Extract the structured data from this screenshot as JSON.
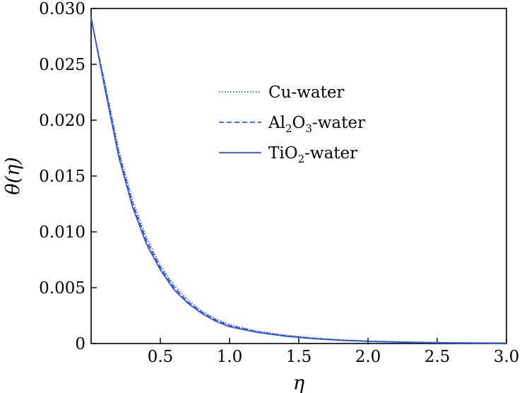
{
  "chart_data": {
    "type": "line",
    "title": "",
    "xlabel": "η",
    "ylabel": "θ(η)",
    "xlim": [
      0,
      3.0
    ],
    "ylim": [
      0,
      0.03
    ],
    "xticks": [
      0.5,
      1.0,
      1.5,
      2.0,
      2.5,
      3.0
    ],
    "xtick_labels": [
      "0.5",
      "1.0",
      "1.5",
      "2.0",
      "2.5",
      "3.0"
    ],
    "yticks": [
      0,
      0.005,
      0.01,
      0.015,
      0.02,
      0.025,
      0.03
    ],
    "ytick_labels": [
      "0",
      "0.005",
      "0.010",
      "0.015",
      "0.020",
      "0.025",
      "0.030"
    ],
    "grid": false,
    "legend_position": "upper-center",
    "x": [
      0,
      0.1,
      0.2,
      0.3,
      0.4,
      0.5,
      0.6,
      0.7,
      0.8,
      0.9,
      1.0,
      1.2,
      1.4,
      1.6,
      1.8,
      2.0,
      2.2,
      2.4,
      2.6,
      2.8,
      3.0
    ],
    "series": [
      {
        "name": "Cu-water",
        "legend_parts": [
          {
            "text": "Cu-water",
            "sub": false
          }
        ],
        "style": "dotted",
        "color": "#3355e0",
        "values": [
          0.029,
          0.0233,
          0.0173,
          0.0128,
          0.0095,
          0.007,
          0.0052,
          0.0039,
          0.0029,
          0.0022,
          0.0017,
          0.0011,
          0.00075,
          0.0005,
          0.00033,
          0.00022,
          0.00015,
          0.0001,
          7e-05,
          5e-05,
          4e-05
        ]
      },
      {
        "name": "Al2O3-water",
        "legend_parts": [
          {
            "text": "Al",
            "sub": false
          },
          {
            "text": "2",
            "sub": true
          },
          {
            "text": "O",
            "sub": false
          },
          {
            "text": "3",
            "sub": true
          },
          {
            "text": "-water",
            "sub": false
          }
        ],
        "style": "dashed",
        "color": "#3355e0",
        "values": [
          0.0291,
          0.0231,
          0.017,
          0.0125,
          0.0092,
          0.0068,
          0.005,
          0.0037,
          0.0028,
          0.0021,
          0.0016,
          0.00105,
          0.0007,
          0.00047,
          0.00031,
          0.00021,
          0.00014,
          9e-05,
          6e-05,
          5e-05,
          4e-05
        ]
      },
      {
        "name": "TiO2-water",
        "legend_parts": [
          {
            "text": "TiO",
            "sub": false
          },
          {
            "text": "2",
            "sub": true
          },
          {
            "text": "-water",
            "sub": false
          }
        ],
        "style": "solid",
        "color": "#3355e0",
        "values": [
          0.0292,
          0.0228,
          0.0167,
          0.0122,
          0.0089,
          0.0066,
          0.0048,
          0.0036,
          0.0027,
          0.002,
          0.0015,
          0.001,
          0.00066,
          0.00044,
          0.00029,
          0.00019,
          0.00013,
          9e-05,
          6e-05,
          4e-05,
          3e-05
        ]
      }
    ]
  }
}
